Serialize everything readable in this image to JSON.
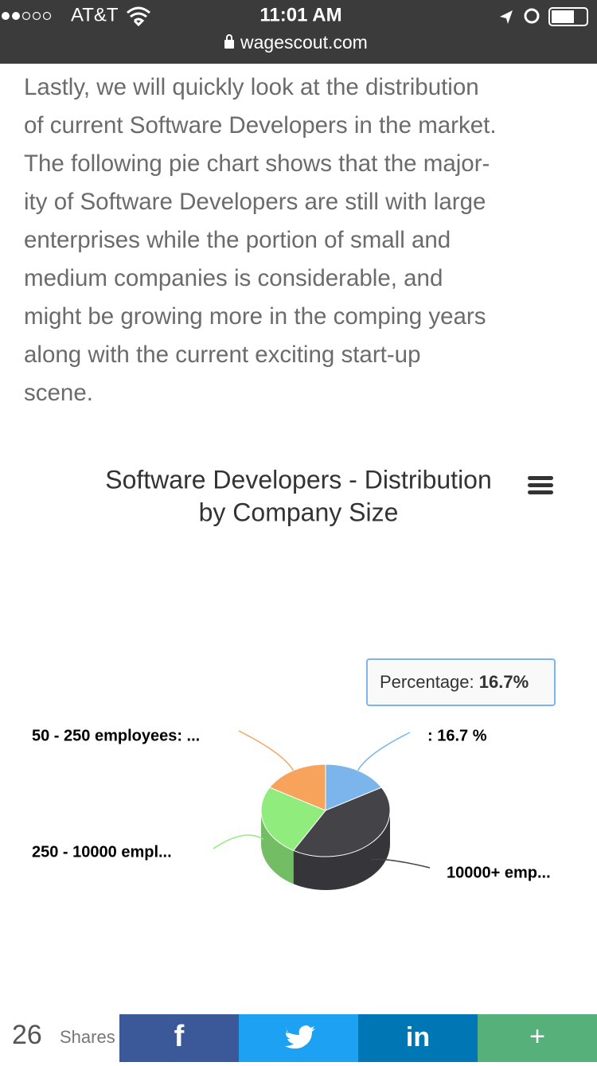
{
  "status_bar": {
    "carrier": "AT&T",
    "time": "11:01 AM",
    "url": "wagescout.com"
  },
  "article": {
    "lines": [
      "Lastly, we will quickly look at the distribution",
      "of current Software Developers in the market.",
      "The following pie chart shows that the major-",
      "ity of Software Developers are still with large",
      "enterprises while the portion of small and",
      "medium companies is considerable, and",
      "might be growing more in the comping years",
      "along with the current exciting start-up",
      "scene."
    ]
  },
  "chart_data": {
    "type": "pie",
    "title": [
      "Software Developers - Distribution",
      "by Company Size"
    ],
    "data_labels": [
      ": 16.7 %",
      "10000+ emp...",
      "250 - 10000 empl...",
      "50 - 250 employees: ..."
    ],
    "values": [
      16.7,
      41.6,
      25,
      16.7
    ],
    "colors": [
      "#7cb5ec",
      "#434348",
      "#90ed7d",
      "#f7a35c"
    ],
    "tooltip": {
      "label": "Percentage:",
      "value_label": "16.7%"
    }
  },
  "share_bar": {
    "count": 26,
    "label": "Shares",
    "buttons": [
      "f",
      "in",
      "+"
    ]
  }
}
